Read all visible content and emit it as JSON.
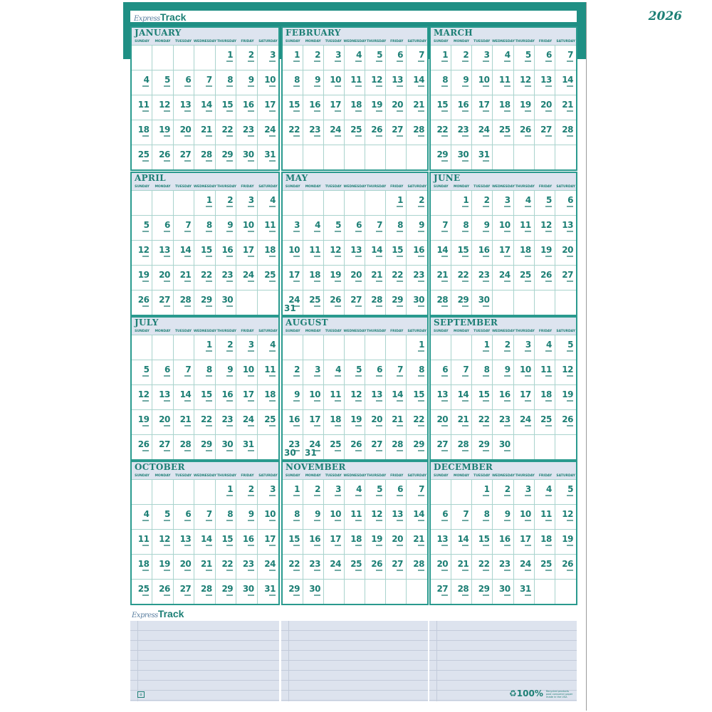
{
  "brand": {
    "logo_script": "Express",
    "logo_track": "Track"
  },
  "year": "2026",
  "day_names": [
    "Sunday",
    "Monday",
    "Tuesday",
    "Wednesday",
    "Thursday",
    "Friday",
    "Saturday"
  ],
  "months": [
    {
      "name": "January",
      "first_weekday": 4,
      "days": 31
    },
    {
      "name": "February",
      "first_weekday": 0,
      "days": 28
    },
    {
      "name": "March",
      "first_weekday": 0,
      "days": 31
    },
    {
      "name": "April",
      "first_weekday": 3,
      "days": 30
    },
    {
      "name": "May",
      "first_weekday": 5,
      "days": 31
    },
    {
      "name": "June",
      "first_weekday": 1,
      "days": 30
    },
    {
      "name": "July",
      "first_weekday": 3,
      "days": 31
    },
    {
      "name": "August",
      "first_weekday": 6,
      "days": 31
    },
    {
      "name": "September",
      "first_weekday": 2,
      "days": 30
    },
    {
      "name": "October",
      "first_weekday": 4,
      "days": 31
    },
    {
      "name": "November",
      "first_weekday": 0,
      "days": 30
    },
    {
      "name": "December",
      "first_weekday": 2,
      "days": 31
    }
  ],
  "footer": {
    "recycle_pct": "100%",
    "recycle_text": "Recycled products post consumer paper made in the USA"
  },
  "colors": {
    "teal": "#1f8f84",
    "header_bg": "#dde4ef",
    "notes_bg": "#dde3ee"
  }
}
